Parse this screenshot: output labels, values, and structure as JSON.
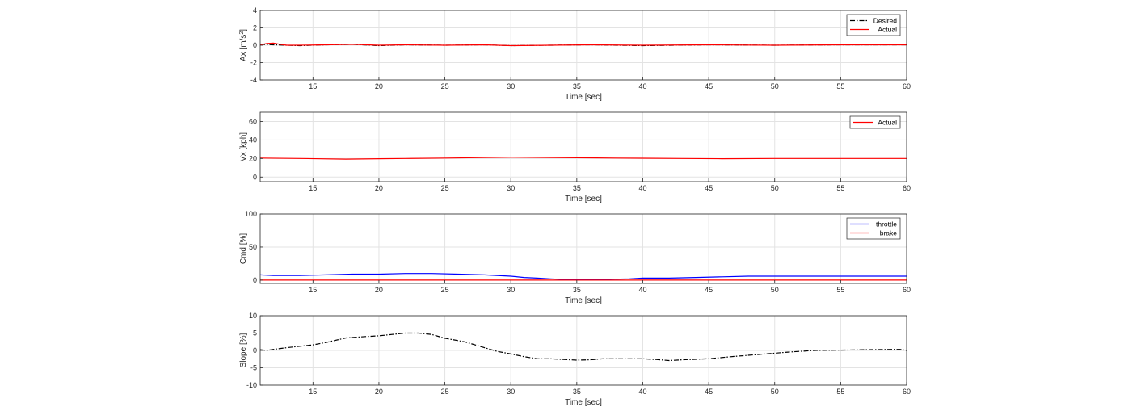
{
  "chart_data": [
    {
      "type": "line",
      "xlabel": "Time [sec]",
      "ylabel_main": "Ax [m/s",
      "ylabel_sup": "2",
      "ylabel_tail": "]",
      "xlim": [
        11,
        60
      ],
      "ylim": [
        -4,
        4
      ],
      "xticks": [
        15,
        20,
        25,
        30,
        35,
        40,
        45,
        50,
        55,
        60
      ],
      "yticks": [
        -4,
        -2,
        0,
        2,
        4
      ],
      "legend": {
        "position": "top-right"
      },
      "grid": true,
      "series": [
        {
          "name": "Desired",
          "color": "#000000",
          "dash": "dashdot",
          "x": [
            11,
            12,
            14,
            16,
            18,
            20,
            22,
            25,
            28,
            30,
            33,
            36,
            40,
            45,
            50,
            55,
            60
          ],
          "y": [
            0.1,
            0.05,
            -0.05,
            0.05,
            0.1,
            -0.05,
            0.05,
            0.0,
            0.05,
            -0.05,
            0.0,
            0.05,
            -0.05,
            0.05,
            0.0,
            0.05,
            0.05
          ]
        },
        {
          "name": "Actual",
          "color": "#ff0000",
          "dash": "solid",
          "x": [
            11,
            11.5,
            12,
            12.5,
            13,
            14,
            16,
            18,
            20,
            22,
            25,
            28,
            30,
            33,
            36,
            40,
            45,
            50,
            55,
            60
          ],
          "y": [
            0.05,
            0.2,
            0.25,
            0.1,
            0.0,
            0.0,
            0.05,
            0.1,
            0.0,
            0.05,
            0.0,
            0.05,
            -0.05,
            0.0,
            0.05,
            0.0,
            0.05,
            0.0,
            0.05,
            0.05
          ]
        }
      ]
    },
    {
      "type": "line",
      "xlabel": "Time [sec]",
      "ylabel_main": "Vx [kph]",
      "xlim": [
        11,
        60
      ],
      "ylim": [
        -5,
        70
      ],
      "xticks": [
        15,
        20,
        25,
        30,
        35,
        40,
        45,
        50,
        55,
        60
      ],
      "yticks": [
        0,
        20,
        40,
        60
      ],
      "legend": {
        "position": "top-right"
      },
      "grid": true,
      "series": [
        {
          "name": "Actual",
          "color": "#ff0000",
          "dash": "solid",
          "x": [
            11,
            14,
            17.5,
            20,
            22,
            25,
            28,
            30,
            33,
            35,
            38,
            40,
            43,
            46,
            50,
            55,
            60
          ],
          "y": [
            20.5,
            20.0,
            19.3,
            19.8,
            20.0,
            20.5,
            21.0,
            21.3,
            21.0,
            20.8,
            20.5,
            20.3,
            20.0,
            19.8,
            20.0,
            20.0,
            20.0
          ]
        }
      ]
    },
    {
      "type": "line",
      "xlabel": "Time [sec]",
      "ylabel_main": "Cmd [%]",
      "xlim": [
        11,
        60
      ],
      "ylim": [
        -5,
        100
      ],
      "xticks": [
        15,
        20,
        25,
        30,
        35,
        40,
        45,
        50,
        55,
        60
      ],
      "yticks": [
        0,
        50,
        100
      ],
      "legend": {
        "position": "top-right"
      },
      "grid": true,
      "series": [
        {
          "name": "throttle",
          "color": "#0000ff",
          "dash": "solid",
          "x": [
            11,
            12,
            14,
            16,
            18,
            20,
            22,
            24,
            26,
            28,
            30,
            31,
            32,
            33,
            34,
            35,
            37,
            39,
            40,
            42,
            44,
            46,
            48,
            50,
            52,
            55,
            58,
            60
          ],
          "y": [
            8,
            7,
            7,
            8,
            9,
            9,
            10,
            10,
            9,
            8,
            6,
            4,
            3,
            2,
            1,
            1,
            1,
            2,
            3,
            3,
            4,
            5,
            6,
            6,
            6,
            6,
            6,
            6
          ]
        },
        {
          "name": "brake",
          "color": "#ff0000",
          "dash": "solid",
          "x": [
            11,
            60
          ],
          "y": [
            0,
            0
          ]
        }
      ]
    },
    {
      "type": "line",
      "xlabel": "Time [sec]",
      "ylabel_main": "Slope [%]",
      "xlim": [
        11,
        60
      ],
      "ylim": [
        -10,
        10
      ],
      "xticks": [
        15,
        20,
        25,
        30,
        35,
        40,
        45,
        50,
        55,
        60
      ],
      "yticks": [
        -10,
        -5,
        0,
        5,
        10
      ],
      "legend": {
        "position": "none"
      },
      "grid": true,
      "series": [
        {
          "name": "",
          "color": "#000000",
          "dash": "dashdot",
          "x": [
            11,
            11.5,
            12,
            13,
            15,
            16,
            17.5,
            19,
            20,
            21,
            22,
            23,
            24,
            25,
            26.5,
            28,
            29,
            30,
            31,
            32,
            33,
            34,
            35,
            36,
            37,
            38,
            40,
            41,
            42,
            43,
            45,
            47,
            49,
            51,
            53,
            55,
            57,
            59,
            59.5,
            60
          ],
          "y": [
            0.2,
            0.0,
            0.3,
            0.8,
            1.6,
            2.3,
            3.6,
            4.0,
            4.2,
            4.6,
            5.0,
            5.0,
            4.6,
            3.5,
            2.5,
            0.8,
            -0.3,
            -1.0,
            -1.8,
            -2.4,
            -2.4,
            -2.6,
            -2.8,
            -2.7,
            -2.4,
            -2.4,
            -2.4,
            -2.6,
            -2.9,
            -2.7,
            -2.4,
            -1.7,
            -1.1,
            -0.5,
            0.0,
            0.1,
            0.2,
            0.3,
            0.3,
            0.0
          ]
        }
      ]
    }
  ]
}
